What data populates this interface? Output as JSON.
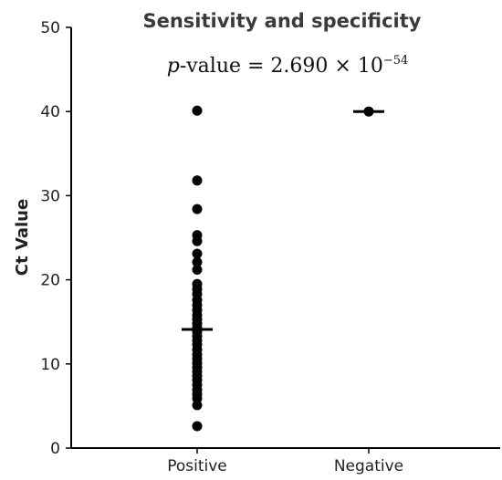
{
  "chart_data": {
    "type": "scatter",
    "title": "Sensitivity and specificity",
    "annotation": {
      "p_symbol": "p",
      "text": "-value = 2.690 × 10",
      "exponent": "−54"
    },
    "xlabel": "",
    "ylabel": "Ct Value",
    "categories": [
      "Positive",
      "Negative"
    ],
    "ylim": [
      0,
      50
    ],
    "yticks": [
      0,
      10,
      20,
      30,
      40,
      50
    ],
    "series": [
      {
        "category": "Positive",
        "values": [
          40.1,
          31.8,
          28.4,
          25.3,
          24.6,
          23.1,
          22.1,
          21.2,
          19.5,
          18.9,
          18.3,
          17.6,
          17.0,
          16.4,
          15.8,
          15.3,
          14.8,
          14.3,
          13.8,
          13.3,
          12.8,
          12.3,
          11.7,
          11.1,
          10.6,
          10.1,
          9.6,
          9.1,
          8.6,
          8.1,
          7.5,
          6.9,
          6.4,
          5.9,
          5.1,
          2.6
        ],
        "median": 14.1
      },
      {
        "category": "Negative",
        "values": [
          40.0
        ],
        "median": 40.0
      }
    ],
    "grid": false,
    "legend": "none",
    "colors": {
      "points": "#000000",
      "axis": "#000000"
    }
  }
}
